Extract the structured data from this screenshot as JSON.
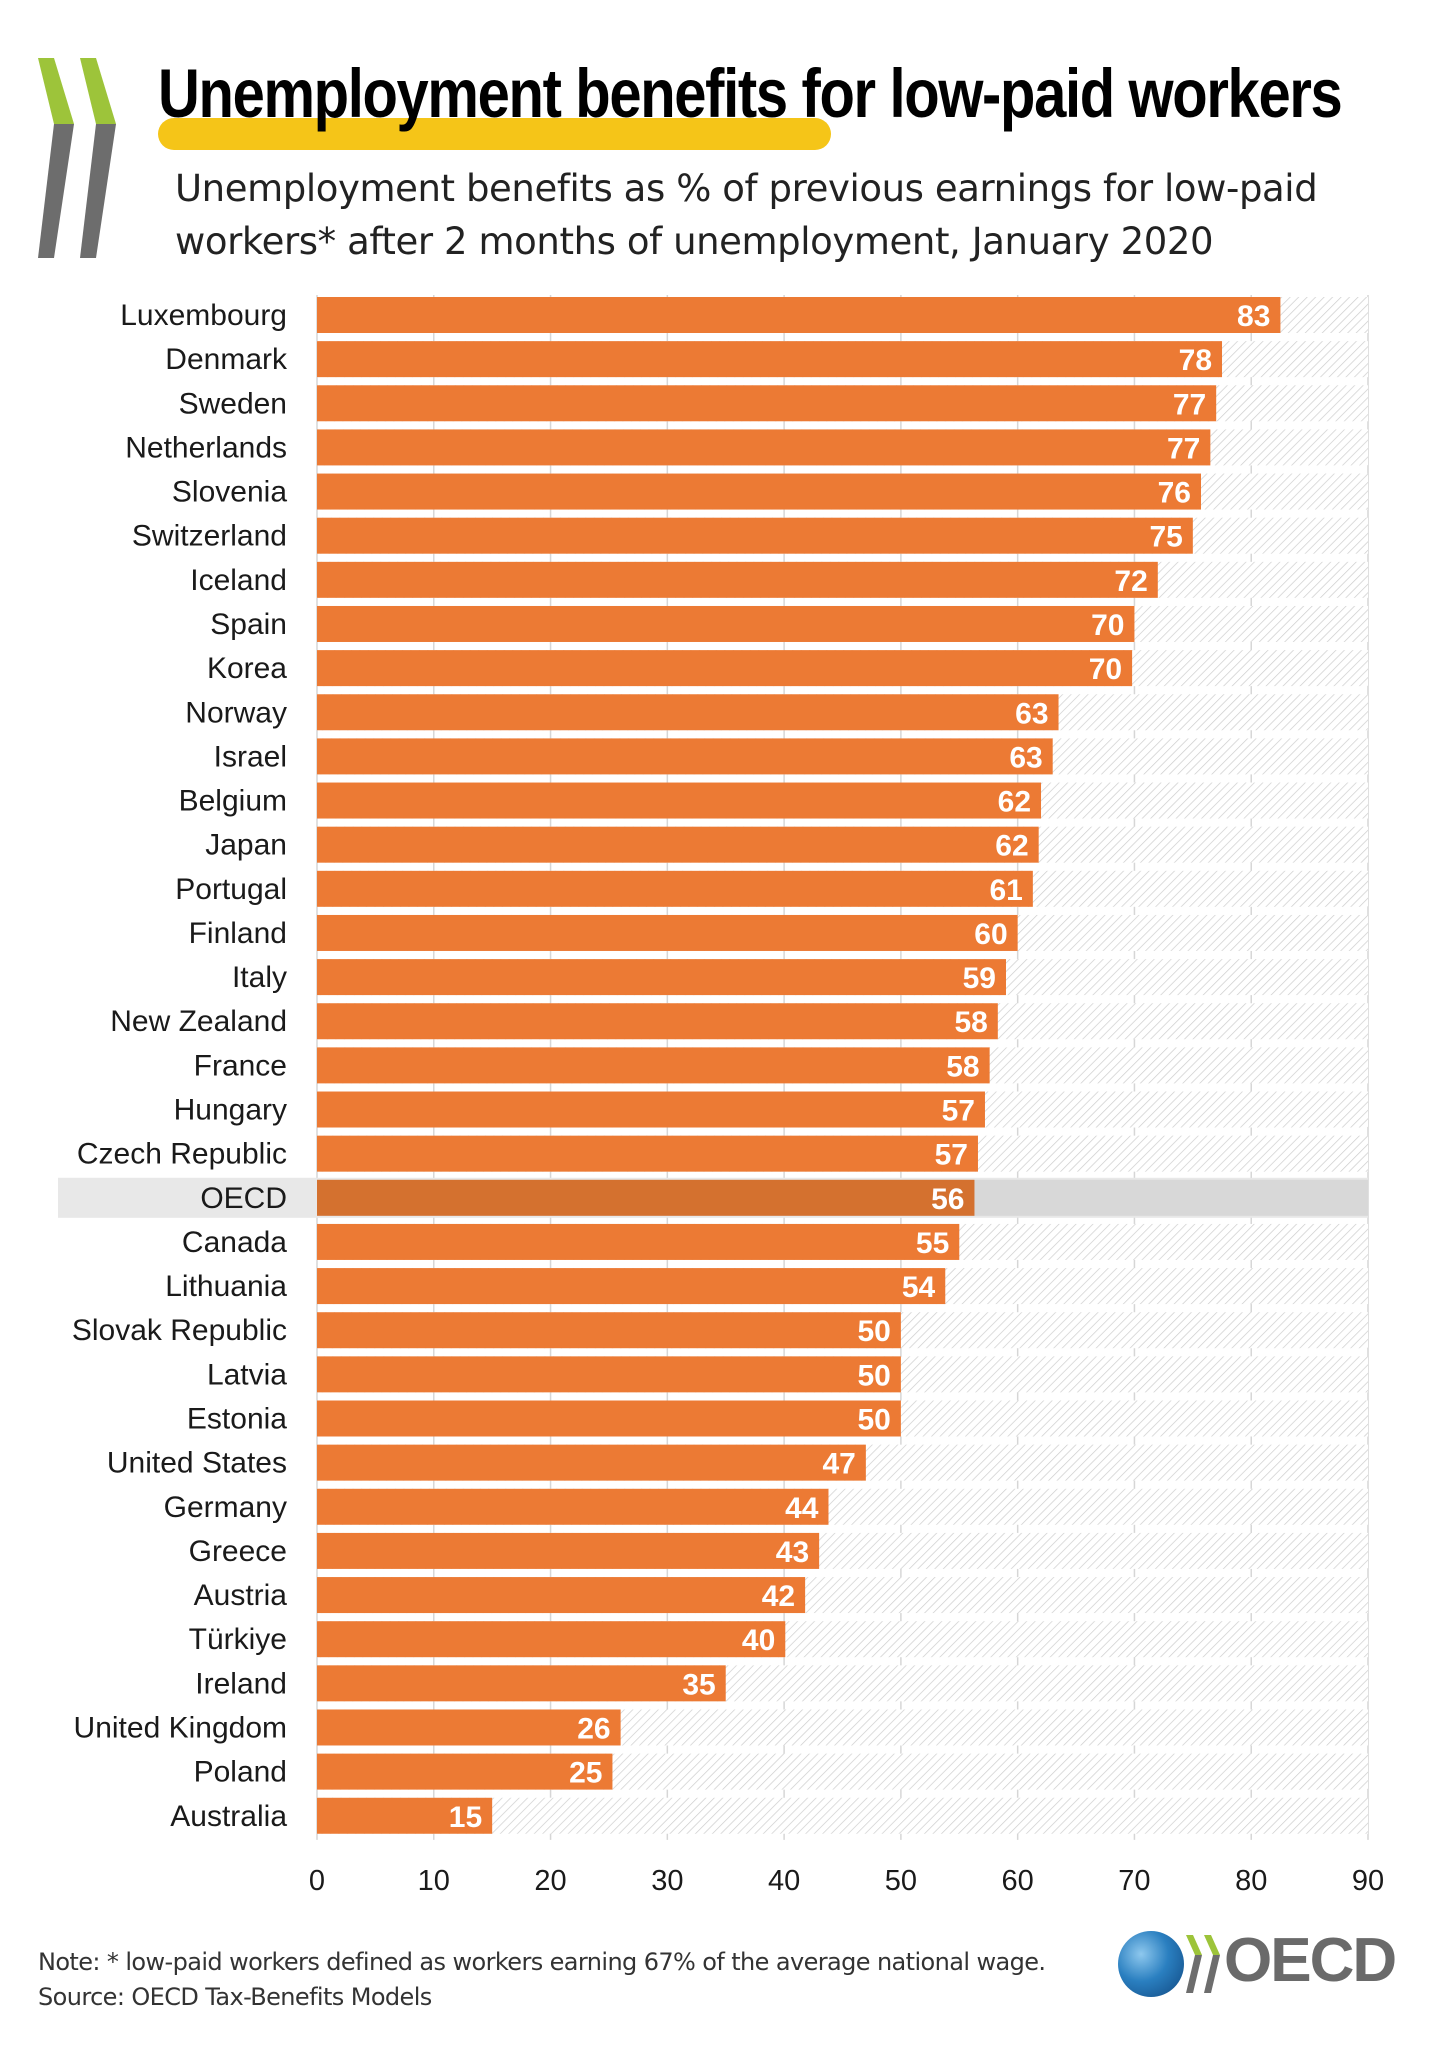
{
  "title": "Unemployment benefits for low-paid workers",
  "subtitle_lines": [
    "Unemployment benefits as % of previous earnings for low-paid",
    "workers* after 2 months of unemployment, January 2020"
  ],
  "note": "Note: * low-paid workers defined as workers earning 67% of the average national wage.",
  "source": "Source:  OECD Tax-Benefits Models",
  "logo_text": "OECD",
  "colors": {
    "bar": "#ec7a34",
    "highlight_row": "#e8e8e8",
    "highlight_bar": "#d4712f",
    "title_highlight": "#f5c518",
    "chevron_green": "#9dc43a",
    "chevron_grey": "#6d6d6d"
  },
  "chart_data": {
    "type": "bar",
    "orientation": "horizontal",
    "categories": [
      "Luxembourg",
      "Denmark",
      "Sweden",
      "Netherlands",
      "Slovenia",
      "Switzerland",
      "Iceland",
      "Spain",
      "Korea",
      "Norway",
      "Israel",
      "Belgium",
      "Japan",
      "Portugal",
      "Finland",
      "Italy",
      "New Zealand",
      "France",
      "Hungary",
      "Czech Republic",
      "OECD",
      "Canada",
      "Lithuania",
      "Slovak Republic",
      "Latvia",
      "Estonia",
      "United States",
      "Germany",
      "Greece",
      "Austria",
      "Türkiye",
      "Ireland",
      "United Kingdom",
      "Poland",
      "Australia"
    ],
    "values": [
      82.5,
      77.5,
      77,
      76.5,
      75.7,
      75,
      72,
      70,
      69.8,
      63.5,
      63,
      62,
      61.8,
      61.3,
      60,
      59,
      58.3,
      57.6,
      57.2,
      56.6,
      56.3,
      55,
      53.8,
      50,
      50,
      50,
      47,
      43.8,
      43,
      41.8,
      40.1,
      35,
      26,
      25.3,
      15
    ],
    "labels": [
      "83",
      "78",
      "77",
      "77",
      "76",
      "75",
      "72",
      "70",
      "70",
      "63",
      "63",
      "62",
      "62",
      "61",
      "60",
      "59",
      "58",
      "58",
      "57",
      "57",
      "56",
      "55",
      "54",
      "50",
      "50",
      "50",
      "47",
      "44",
      "43",
      "42",
      "40",
      "35",
      "26",
      "25",
      "15"
    ],
    "highlight": "OECD",
    "xlim": [
      0,
      90
    ],
    "xticks": [
      "0",
      "10",
      "20",
      "30",
      "40",
      "50",
      "60",
      "70",
      "80",
      "90"
    ],
    "grid": true,
    "legend": "none"
  }
}
